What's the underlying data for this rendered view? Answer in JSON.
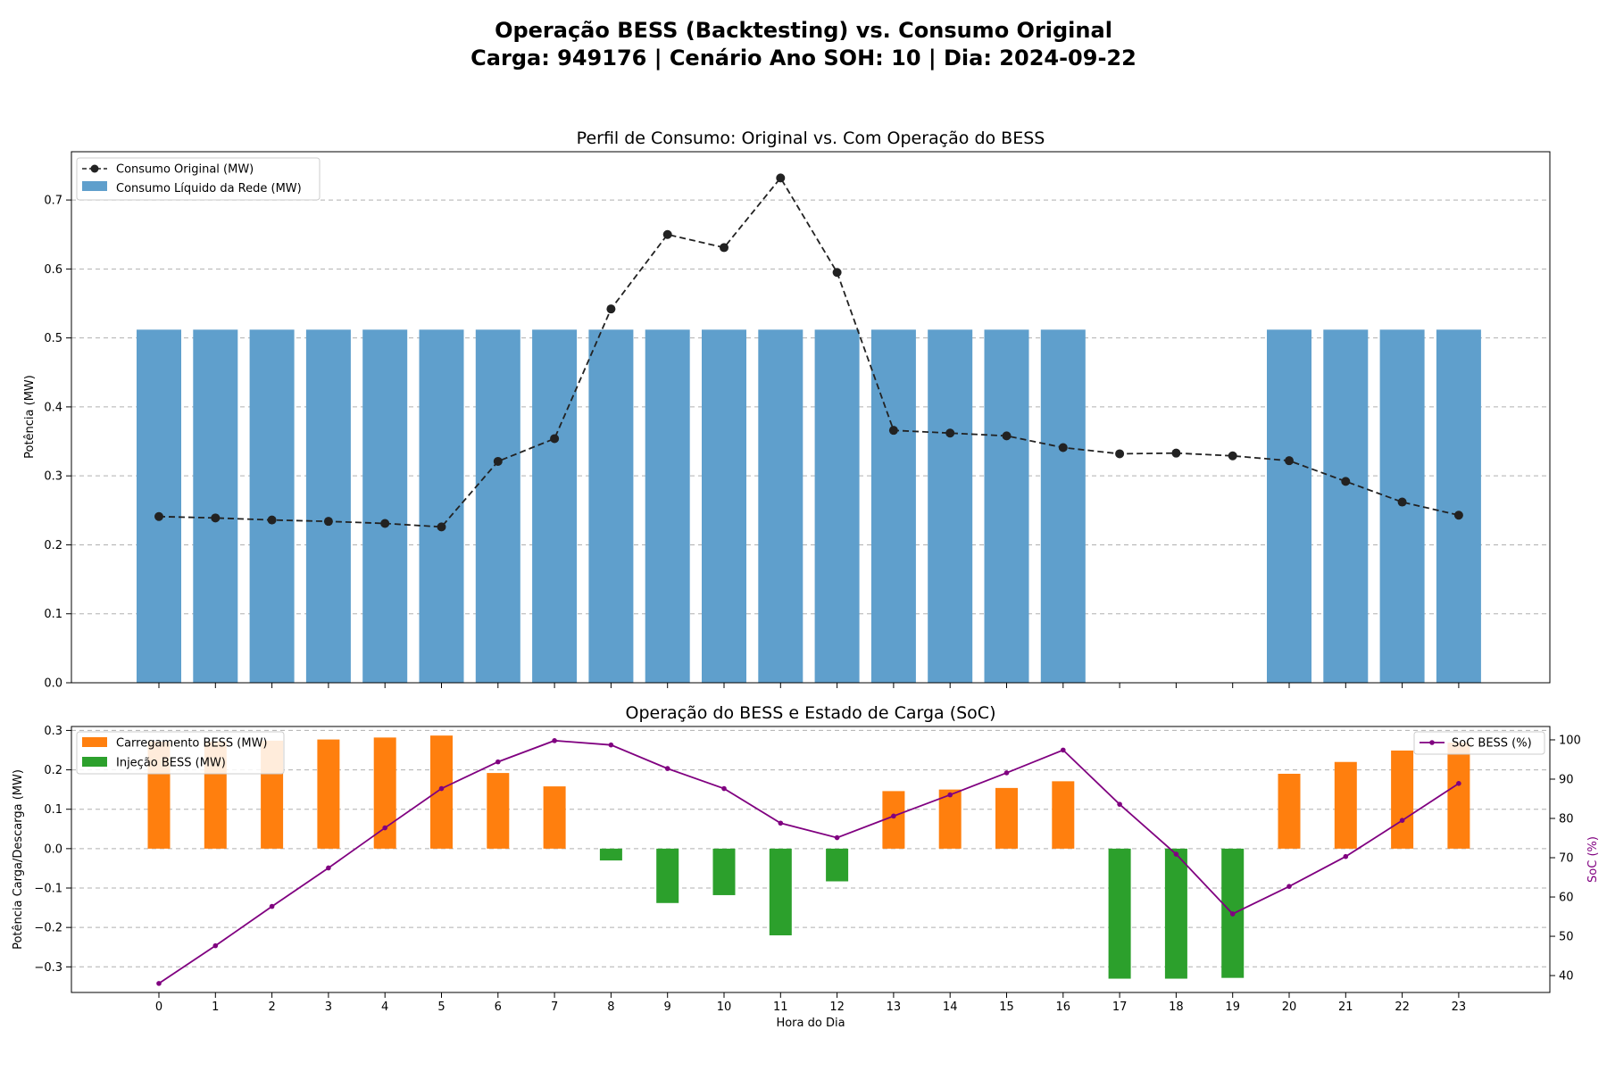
{
  "title_line1": "Operação BESS (Backtesting) vs. Consumo Original",
  "title_line2": "Carga: 949176 | Cenário Ano SOH: 10 | Dia: 2024-09-22",
  "chart_data": [
    {
      "type": "bar",
      "title": "Perfil de Consumo: Original vs. Com Operação do BESS",
      "xlabel": "",
      "ylabel": "Potência (MW)",
      "ylim": [
        0,
        0.77
      ],
      "yticks": [
        "0.0",
        "0.1",
        "0.2",
        "0.3",
        "0.4",
        "0.5",
        "0.6",
        "0.7"
      ],
      "grid": "horizontal dashed",
      "legend_position": "upper-left",
      "categories": [
        0,
        1,
        2,
        3,
        4,
        5,
        6,
        7,
        8,
        9,
        10,
        11,
        12,
        13,
        14,
        15,
        16,
        17,
        18,
        19,
        20,
        21,
        22,
        23
      ],
      "series": [
        {
          "name": "Consumo Original (MW)",
          "kind": "line",
          "style": "dashed with circle markers",
          "color": "#222222",
          "values": [
            0.241,
            0.239,
            0.236,
            0.234,
            0.231,
            0.226,
            0.321,
            0.354,
            0.542,
            0.65,
            0.631,
            0.732,
            0.595,
            0.366,
            0.362,
            0.358,
            0.341,
            0.332,
            0.333,
            0.329,
            0.322,
            0.292,
            0.262,
            0.243
          ]
        },
        {
          "name": "Consumo Líquido da Rede (MW)",
          "kind": "bar",
          "color": "#5f9fcc",
          "values": [
            0.512,
            0.512,
            0.512,
            0.512,
            0.512,
            0.512,
            0.512,
            0.512,
            0.512,
            0.512,
            0.512,
            0.512,
            0.512,
            0.512,
            0.512,
            0.512,
            0.512,
            0,
            0,
            0,
            0.512,
            0.512,
            0.512,
            0.512
          ]
        }
      ]
    },
    {
      "type": "bar",
      "title": "Operação do BESS e Estado de Carga (SoC)",
      "xlabel": "Hora do Dia",
      "ylabel": "Potência Carga/Descarga (MW)",
      "ylim": [
        -0.365,
        0.31
      ],
      "yticks": [
        "−0.3",
        "−0.2",
        "−0.1",
        "0.0",
        "0.1",
        "0.2",
        "0.3"
      ],
      "y2label": "SoC (%)",
      "y2lim": [
        35.7,
        103.4
      ],
      "y2ticks": [
        "40",
        "50",
        "60",
        "70",
        "80",
        "90",
        "100"
      ],
      "grid": "horizontal dashed",
      "categories": [
        0,
        1,
        2,
        3,
        4,
        5,
        6,
        7,
        8,
        9,
        10,
        11,
        12,
        13,
        14,
        15,
        16,
        17,
        18,
        19,
        20,
        21,
        22,
        23
      ],
      "xticks": [
        "0",
        "1",
        "2",
        "3",
        "4",
        "5",
        "6",
        "7",
        "8",
        "9",
        "10",
        "11",
        "12",
        "13",
        "14",
        "15",
        "16",
        "17",
        "18",
        "19",
        "20",
        "21",
        "22",
        "23"
      ],
      "series": [
        {
          "name": "Carregamento BESS (MW)",
          "kind": "bar",
          "color": "#ff7f0e",
          "values": [
            0.272,
            0.272,
            0.274,
            0.277,
            0.282,
            0.287,
            0.192,
            0.158,
            0,
            0,
            0,
            0,
            0,
            0.146,
            0.15,
            0.154,
            0.171,
            0,
            0,
            0,
            0.19,
            0.22,
            0.249,
            0.269
          ]
        },
        {
          "name": "Injeção BESS (MW)",
          "kind": "bar",
          "color": "#2ca02c",
          "values": [
            0,
            0,
            0,
            0,
            0,
            0,
            0,
            0,
            -0.03,
            -0.138,
            -0.118,
            -0.22,
            -0.083,
            0,
            0,
            0,
            0,
            -0.33,
            -0.33,
            -0.328,
            0,
            0,
            0,
            0
          ]
        },
        {
          "name": "SoC BESS (%)",
          "kind": "line",
          "axis": "right",
          "color": "#800080",
          "legend_position": "upper-right",
          "values": [
            38.0,
            47.6,
            57.6,
            67.4,
            77.6,
            87.6,
            94.4,
            99.8,
            98.7,
            92.7,
            87.6,
            78.8,
            75.1,
            80.6,
            86.0,
            91.6,
            97.4,
            83.6,
            70.9,
            55.7,
            62.7,
            70.3,
            79.5,
            88.9
          ]
        }
      ]
    }
  ]
}
